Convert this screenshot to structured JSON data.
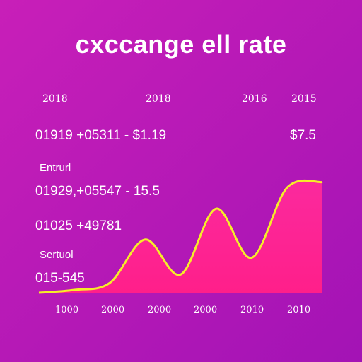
{
  "title": "cxccange ell rate",
  "top_ticks": [
    "2018",
    "2018",
    "2016",
    "2015"
  ],
  "value_label_right": "$7.5",
  "text_rows": [
    "01919 +05311 - $1.19",
    "Entrurl",
    "01929,+05547 - 15.5",
    "01025 +49781",
    "Sertuol",
    "015-545"
  ],
  "x_ticks": [
    "1000",
    "2000",
    "2000",
    "2000",
    "2010",
    "2010"
  ],
  "colors": {
    "background_top": "#c81fb8",
    "background_bottom": "#a313b5",
    "area_fill": "#ff2a9c",
    "line": "#f6ee28",
    "text": "#ffffff"
  },
  "chart_data": {
    "type": "area",
    "title": "cxccange ell rate",
    "x_tick_labels": [
      "1000",
      "2000",
      "2000",
      "2000",
      "2010",
      "2010"
    ],
    "top_tick_labels": [
      "2018",
      "2018",
      "2016",
      "2015"
    ],
    "series": [
      {
        "relative_values": [
          0.0,
          0.02,
          0.07,
          0.38,
          0.13,
          0.6,
          0.25,
          0.75,
          0.79
        ]
      }
    ],
    "grid": false,
    "legend": "none"
  }
}
